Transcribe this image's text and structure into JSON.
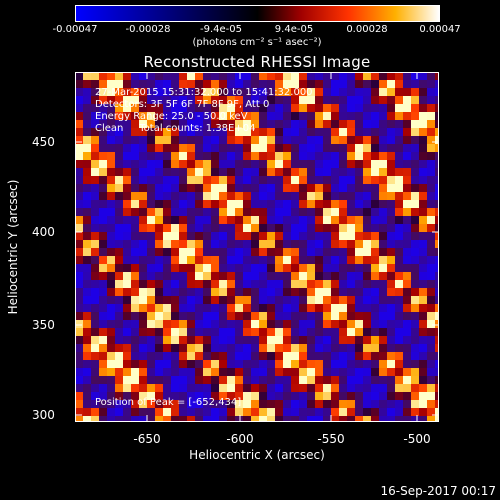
{
  "colorbar": {
    "tick_labels": [
      "-0.00047",
      "-0.00028",
      "-9.4e-05",
      "9.4e-05",
      "0.00028",
      "0.00047"
    ],
    "unit_label": "(photons cm⁻² s⁻¹ asec⁻²)"
  },
  "title": "Reconstructed RHESSI Image",
  "info": {
    "line1": "27-Mar-2015 15:31:32.000 to 15:41:32.000",
    "line2": "Detectors: 3F 5F 6F 7F 8F 9F, Att 0",
    "line3": "Energy Range: 25.0 - 50.0 keV",
    "line4": "Clean     Total counts: 1.38E+04",
    "peak": "Position of Peak = [-652,434]"
  },
  "axes": {
    "xlabel": "Heliocentric X (arcsec)",
    "ylabel": "Heliocentric Y (arcsec)",
    "xticks": [
      "-650",
      "-600",
      "-550",
      "-500"
    ],
    "yticks": [
      "450",
      "400",
      "350",
      "300"
    ]
  },
  "timestamp": "16-Sep-2017 00:17",
  "colors": {
    "background": "#000000",
    "foreground": "#ffffff"
  }
}
